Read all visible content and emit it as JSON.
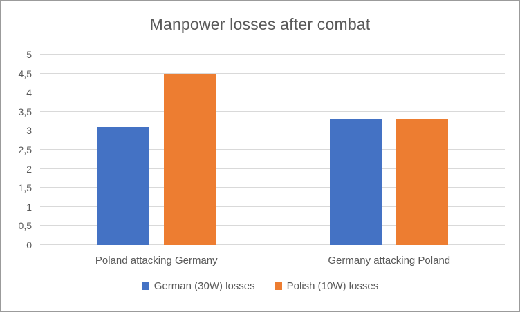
{
  "title": "Manpower losses after combat",
  "colors": {
    "series_german": "#4472C4",
    "series_polish": "#ED7D31",
    "text": "#595959",
    "gridline": "#D9D9D9",
    "frame_border": "#9B9B9B",
    "background": "#FFFFFF"
  },
  "chart_data": {
    "type": "bar",
    "title": "Manpower losses after combat",
    "categories": [
      "Poland attacking Germany",
      "Germany attacking Poland"
    ],
    "series": [
      {
        "name": "German (30W) losses",
        "color": "#4472C4",
        "values": [
          3.1,
          3.3
        ]
      },
      {
        "name": "Polish (10W) losses",
        "color": "#ED7D31",
        "values": [
          4.5,
          3.3
        ]
      }
    ],
    "xlabel": "",
    "ylabel": "",
    "ylim": [
      0,
      5
    ],
    "ytick_step": 0.5,
    "ytick_labels": [
      "0",
      "0,5",
      "1",
      "1,5",
      "2",
      "2,5",
      "3",
      "3,5",
      "4",
      "4,5",
      "5"
    ],
    "decimal_separator": ",",
    "grid": "horizontal",
    "legend_position": "bottom"
  }
}
